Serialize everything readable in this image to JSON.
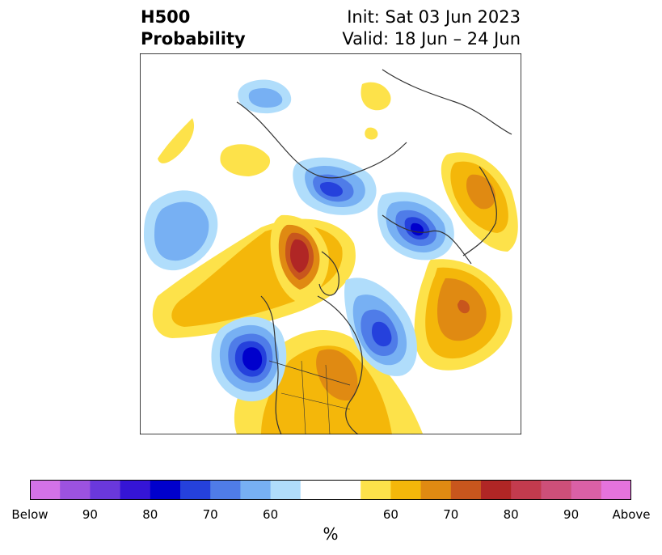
{
  "header": {
    "title_line1": "H500",
    "title_line2": "Probability",
    "init_line": "Init: Sat 03 Jun 2023",
    "valid_line": "Valid: 18 Jun – 24 Jun"
  },
  "colorbar": {
    "unit": "%",
    "colors": [
      "#d372e8",
      "#9c52e0",
      "#6a38dc",
      "#3515d6",
      "#0000cc",
      "#2541dc",
      "#4f7ce8",
      "#77b0f3",
      "#b0ddfb",
      "#ffffff",
      "#ffffff",
      "#fde24a",
      "#f4b70a",
      "#e08a12",
      "#c8561d",
      "#b02625",
      "#c33b4e",
      "#cd4f79",
      "#da60a6",
      "#e573dd"
    ],
    "tick_labels": [
      "Below",
      "90",
      "80",
      "70",
      "60",
      "60",
      "70",
      "80",
      "90",
      "Above"
    ]
  },
  "map": {
    "projection": "polar stereographic",
    "region": "Northern Hemisphere"
  }
}
